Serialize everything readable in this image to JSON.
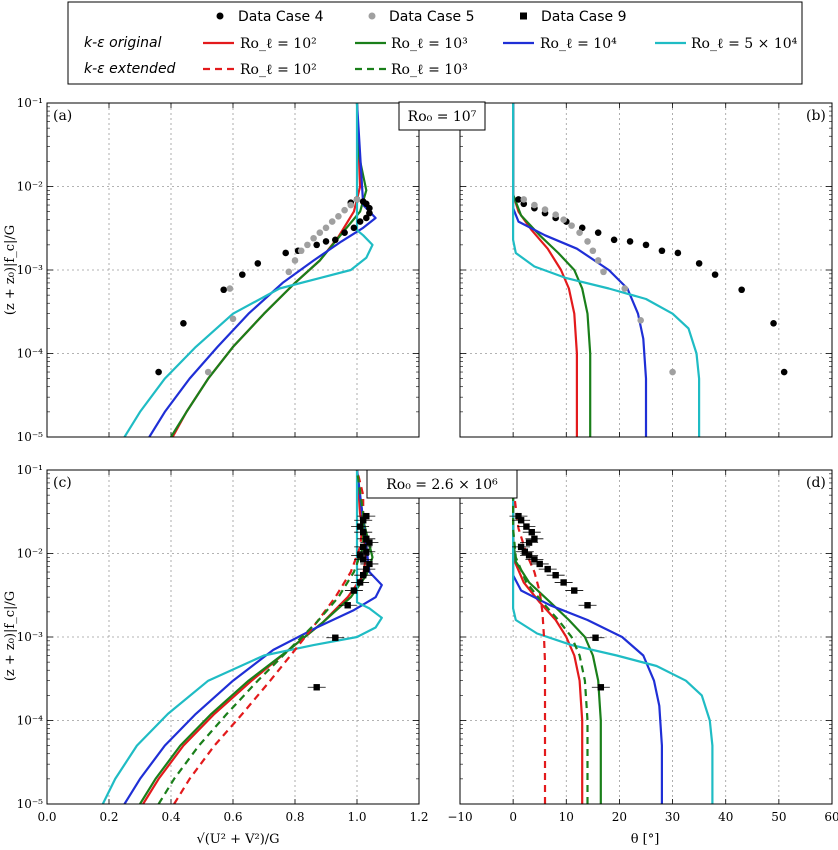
{
  "legend": {
    "row_labels": [
      "k-ε original",
      "k-ε extended"
    ],
    "data_entries": [
      {
        "label": "Data Case 4",
        "marker": "circle",
        "color": "#000000"
      },
      {
        "label": "Data Case 5",
        "marker": "circle",
        "color": "#a0a0a0"
      },
      {
        "label": "Data Case 9",
        "marker": "square",
        "color": "#000000"
      }
    ],
    "model_entries": [
      {
        "label": "Ro_ℓ = 10²",
        "color": "#e31a1c",
        "dash": "solid"
      },
      {
        "label": "Ro_ℓ = 10³",
        "color": "#1a7f1a",
        "dash": "solid"
      },
      {
        "label": "Ro_ℓ = 10⁴",
        "color": "#1f2fd6",
        "dash": "solid"
      },
      {
        "label": "Ro_ℓ = 5 × 10⁴",
        "color": "#1fbcc4",
        "dash": "solid"
      },
      {
        "label": "Ro_ℓ = 10²",
        "color": "#e31a1c",
        "dash": "dashed"
      },
      {
        "label": "Ro_ℓ = 10³",
        "color": "#1a7f1a",
        "dash": "dashed"
      }
    ]
  },
  "ro_labels": {
    "top": "Ro₀ = 10⁷",
    "bottom": "Ro₀ = 2.6 × 10⁶"
  },
  "axes": {
    "xlabel_left": "√(U² + V²)/G",
    "xlabel_right": "θ [°]",
    "ylabel": "(z + z₀)|f_c|/G",
    "left_xticks": [
      "0.0",
      "0.2",
      "0.4",
      "0.6",
      "0.8",
      "1.0",
      "1.2"
    ],
    "right_xticks": [
      "−10",
      "0",
      "10",
      "20",
      "30",
      "40",
      "50",
      "60"
    ],
    "yticks": [
      "10⁻⁵",
      "10⁻⁴",
      "10⁻³",
      "10⁻²",
      "10⁻¹"
    ]
  },
  "chart_data": [
    {
      "panel": "(a)",
      "type": "line",
      "xlim": [
        0,
        1.2
      ],
      "ylim": [
        1e-05,
        0.1
      ],
      "yscale": "log",
      "grid": true,
      "series": [
        {
          "name": "Ro_ℓ = 10² original",
          "color": "#e31a1c",
          "dash": "solid",
          "x": [
            0.405,
            0.45,
            0.52,
            0.6,
            0.7,
            0.8,
            0.88,
            0.94,
            0.99,
            1.01,
            1.005,
            1.0
          ],
          "y": [
            1e-05,
            2e-05,
            5e-05,
            0.00012,
            0.0003,
            0.0007,
            0.0013,
            0.0025,
            0.005,
            0.01,
            0.03,
            0.1
          ]
        },
        {
          "name": "Ro_ℓ = 10³ original",
          "color": "#1a7f1a",
          "dash": "solid",
          "x": [
            0.4,
            0.45,
            0.52,
            0.6,
            0.7,
            0.8,
            0.88,
            0.95,
            1.01,
            1.03,
            1.005,
            1.0
          ],
          "y": [
            1e-05,
            2e-05,
            5e-05,
            0.00012,
            0.0003,
            0.0007,
            0.0013,
            0.0027,
            0.005,
            0.009,
            0.025,
            0.1
          ]
        },
        {
          "name": "Ro_ℓ = 10⁴ original",
          "color": "#1f2fd6",
          "dash": "solid",
          "x": [
            0.33,
            0.38,
            0.46,
            0.55,
            0.65,
            0.76,
            0.86,
            0.95,
            1.02,
            1.06,
            1.02,
            1.0
          ],
          "y": [
            1e-05,
            2e-05,
            5e-05,
            0.00012,
            0.0003,
            0.0007,
            0.0013,
            0.0022,
            0.0032,
            0.0042,
            0.006,
            0.1
          ]
        },
        {
          "name": "Ro_ℓ = 5 × 10⁴ original",
          "color": "#1fbcc4",
          "dash": "solid",
          "x": [
            0.25,
            0.3,
            0.38,
            0.48,
            0.6,
            0.75,
            0.88,
            0.98,
            1.03,
            1.05,
            1.02,
            1.0,
            1.0
          ],
          "y": [
            1e-05,
            2e-05,
            5e-05,
            0.00012,
            0.0003,
            0.0006,
            0.0008,
            0.001,
            0.0014,
            0.002,
            0.0026,
            0.003,
            0.1
          ]
        }
      ],
      "scatter": [
        {
          "name": "Data Case 4",
          "marker": "circle",
          "color": "#000000",
          "x": [
            0.36,
            0.44,
            0.57,
            0.63,
            0.68,
            0.77,
            0.81,
            0.87,
            0.9,
            0.93,
            0.96,
            0.99,
            1.01,
            1.03,
            1.04,
            1.04,
            1.03,
            1.02,
            1.0,
            0.98
          ],
          "y": [
            6e-05,
            0.00023,
            0.00058,
            0.00088,
            0.0012,
            0.0016,
            0.0017,
            0.002,
            0.0022,
            0.0023,
            0.0028,
            0.0032,
            0.0038,
            0.0042,
            0.0048,
            0.0055,
            0.0062,
            0.0066,
            0.007,
            0.0064
          ]
        },
        {
          "name": "Data Case 5",
          "marker": "circle",
          "color": "#a0a0a0",
          "x": [
            0.52,
            0.6,
            0.59,
            0.78,
            0.8,
            0.82,
            0.84,
            0.86,
            0.88,
            0.9,
            0.92,
            0.94,
            0.96,
            0.98,
            1.0
          ],
          "y": [
            6e-05,
            0.00026,
            0.0006,
            0.00095,
            0.0013,
            0.0017,
            0.002,
            0.0024,
            0.0028,
            0.0032,
            0.0038,
            0.0044,
            0.0052,
            0.006,
            0.007
          ]
        }
      ]
    },
    {
      "panel": "(b)",
      "type": "line",
      "xlim": [
        -10,
        60
      ],
      "ylim": [
        1e-05,
        0.1
      ],
      "yscale": "log",
      "grid": true,
      "series": [
        {
          "name": "Ro_ℓ = 10² original",
          "color": "#e31a1c",
          "dash": "solid",
          "x": [
            12,
            12,
            11.5,
            10.5,
            9,
            6.5,
            3.5,
            1,
            0,
            0
          ],
          "y": [
            1e-05,
            0.0001,
            0.0003,
            0.0006,
            0.001,
            0.0018,
            0.003,
            0.005,
            0.008,
            0.1
          ]
        },
        {
          "name": "Ro_ℓ = 10³ original",
          "color": "#1a7f1a",
          "dash": "solid",
          "x": [
            14.5,
            14.5,
            14,
            13,
            11.5,
            8.5,
            5,
            1.5,
            0,
            0
          ],
          "y": [
            1e-05,
            0.0001,
            0.0003,
            0.0006,
            0.001,
            0.0016,
            0.0026,
            0.0045,
            0.008,
            0.1
          ]
        },
        {
          "name": "Ro_ℓ = 10⁴ original",
          "color": "#1f2fd6",
          "dash": "solid",
          "x": [
            25,
            25,
            24.5,
            23.5,
            21.5,
            18,
            12,
            6,
            1,
            0,
            0
          ],
          "y": [
            1e-05,
            5e-05,
            0.00015,
            0.0003,
            0.0006,
            0.001,
            0.0018,
            0.0026,
            0.0038,
            0.0055,
            0.1
          ]
        },
        {
          "name": "Ro_ℓ = 5 × 10⁴ original",
          "color": "#1fbcc4",
          "dash": "solid",
          "x": [
            35,
            35,
            34.5,
            33,
            30,
            25,
            18,
            10,
            4,
            0.5,
            0,
            0
          ],
          "y": [
            1e-05,
            5e-05,
            0.0001,
            0.0002,
            0.0003,
            0.00045,
            0.0006,
            0.0008,
            0.0011,
            0.0016,
            0.0023,
            0.1
          ]
        }
      ],
      "scatter": [
        {
          "name": "Data Case 4",
          "marker": "circle",
          "color": "#000000",
          "x": [
            51,
            49,
            43,
            38,
            35,
            31,
            28,
            25,
            22,
            19,
            16,
            13,
            10,
            8,
            6,
            4,
            2,
            1
          ],
          "y": [
            6e-05,
            0.00023,
            0.00058,
            0.00088,
            0.0012,
            0.0016,
            0.0017,
            0.002,
            0.0022,
            0.0023,
            0.0028,
            0.0032,
            0.0038,
            0.0042,
            0.0048,
            0.0055,
            0.0062,
            0.007
          ]
        },
        {
          "name": "Data Case 5",
          "marker": "circle",
          "color": "#a0a0a0",
          "x": [
            30,
            24,
            21,
            17,
            16,
            15,
            14,
            12.5,
            11,
            9.5,
            8,
            6,
            4,
            2
          ],
          "y": [
            6e-05,
            0.00025,
            0.0006,
            0.00095,
            0.0013,
            0.0017,
            0.0022,
            0.0028,
            0.0034,
            0.004,
            0.0046,
            0.0053,
            0.006,
            0.007
          ]
        }
      ]
    },
    {
      "panel": "(c)",
      "type": "line",
      "xlim": [
        0,
        1.2
      ],
      "ylim": [
        1e-05,
        0.1
      ],
      "yscale": "log",
      "grid": true,
      "series": [
        {
          "name": "Ro_ℓ = 10² original",
          "color": "#e31a1c",
          "dash": "solid",
          "x": [
            0.31,
            0.36,
            0.44,
            0.54,
            0.66,
            0.78,
            0.89,
            0.97,
            1.02,
            1.03,
            1.01,
            1.0
          ],
          "y": [
            1e-05,
            2e-05,
            5e-05,
            0.00012,
            0.0003,
            0.0007,
            0.0015,
            0.003,
            0.0055,
            0.01,
            0.03,
            0.1
          ]
        },
        {
          "name": "Ro_ℓ = 10³ original",
          "color": "#1a7f1a",
          "dash": "solid",
          "x": [
            0.3,
            0.35,
            0.43,
            0.53,
            0.65,
            0.78,
            0.89,
            0.98,
            1.03,
            1.05,
            1.02,
            1.0
          ],
          "y": [
            1e-05,
            2e-05,
            5e-05,
            0.00012,
            0.0003,
            0.0007,
            0.0015,
            0.003,
            0.0055,
            0.009,
            0.025,
            0.1
          ]
        },
        {
          "name": "Ro_ℓ = 10⁴ original",
          "color": "#1f2fd6",
          "dash": "solid",
          "x": [
            0.25,
            0.3,
            0.38,
            0.48,
            0.6,
            0.73,
            0.87,
            0.99,
            1.06,
            1.08,
            1.04,
            1.0
          ],
          "y": [
            1e-05,
            2e-05,
            5e-05,
            0.00012,
            0.0003,
            0.0007,
            0.0013,
            0.0021,
            0.003,
            0.0042,
            0.006,
            0.1
          ]
        },
        {
          "name": "Ro_ℓ = 5 × 10⁴ original",
          "color": "#1fbcc4",
          "dash": "solid",
          "x": [
            0.18,
            0.22,
            0.29,
            0.39,
            0.52,
            0.7,
            0.86,
            1.0,
            1.06,
            1.08,
            1.04,
            1.0,
            1.0
          ],
          "y": [
            1e-05,
            2e-05,
            5e-05,
            0.00012,
            0.0003,
            0.0006,
            0.0008,
            0.001,
            0.0013,
            0.0017,
            0.0022,
            0.0026,
            0.1
          ]
        },
        {
          "name": "Ro_ℓ = 10² extended",
          "color": "#e31a1c",
          "dash": "dashed",
          "x": [
            0.41,
            0.46,
            0.54,
            0.63,
            0.72,
            0.8,
            0.87,
            0.93,
            0.98,
            1.01,
            1.02,
            1.02,
            1.0
          ],
          "y": [
            1e-05,
            2e-05,
            5e-05,
            0.00012,
            0.0003,
            0.0007,
            0.0015,
            0.003,
            0.006,
            0.012,
            0.025,
            0.05,
            0.1
          ]
        },
        {
          "name": "Ro_ℓ = 10³ extended",
          "color": "#1a7f1a",
          "dash": "dashed",
          "x": [
            0.36,
            0.41,
            0.49,
            0.58,
            0.68,
            0.78,
            0.87,
            0.94,
            0.99,
            1.02,
            1.02,
            1.0
          ],
          "y": [
            1e-05,
            2e-05,
            5e-05,
            0.00012,
            0.0003,
            0.0007,
            0.0015,
            0.003,
            0.006,
            0.012,
            0.03,
            0.1
          ]
        }
      ],
      "scatter": [
        {
          "name": "Data Case 9",
          "marker": "square",
          "color": "#000000",
          "x": [
            0.87,
            0.93,
            0.97,
            0.99,
            1.01,
            1.02,
            1.03,
            1.04,
            1.02,
            1.01,
            1.03,
            1.02,
            1.04,
            1.03,
            1.02,
            1.01,
            1.02,
            1.03
          ],
          "y": [
            0.00025,
            0.00098,
            0.0024,
            0.0036,
            0.0045,
            0.0055,
            0.0065,
            0.0075,
            0.0085,
            0.0095,
            0.0105,
            0.012,
            0.0135,
            0.015,
            0.018,
            0.021,
            0.025,
            0.028
          ]
        }
      ]
    },
    {
      "panel": "(d)",
      "type": "line",
      "xlim": [
        -10,
        60
      ],
      "ylim": [
        1e-05,
        0.1
      ],
      "yscale": "log",
      "grid": true,
      "series": [
        {
          "name": "Ro_ℓ = 10² original",
          "color": "#e31a1c",
          "dash": "solid",
          "x": [
            13,
            13,
            12.5,
            11.5,
            10,
            8,
            5,
            2,
            0.3,
            0,
            0
          ],
          "y": [
            1e-05,
            0.0001,
            0.0003,
            0.0006,
            0.001,
            0.0016,
            0.0026,
            0.0045,
            0.008,
            0.015,
            0.1
          ]
        },
        {
          "name": "Ro_ℓ = 10³ original",
          "color": "#1a7f1a",
          "dash": "solid",
          "x": [
            16.5,
            16.5,
            16,
            15,
            13.5,
            10.5,
            7,
            3,
            0.5,
            0,
            0
          ],
          "y": [
            1e-05,
            0.0001,
            0.0003,
            0.0006,
            0.001,
            0.0016,
            0.0026,
            0.0045,
            0.008,
            0.015,
            0.1
          ]
        },
        {
          "name": "Ro_ℓ = 10⁴ original",
          "color": "#1f2fd6",
          "dash": "solid",
          "x": [
            28,
            28,
            27.5,
            26.5,
            24.5,
            20.5,
            14,
            7,
            1.5,
            0,
            0
          ],
          "y": [
            1e-05,
            5e-05,
            0.00015,
            0.0003,
            0.0006,
            0.001,
            0.0016,
            0.0024,
            0.0036,
            0.0055,
            0.1
          ]
        },
        {
          "name": "Ro_ℓ = 5 × 10⁴ original",
          "color": "#1fbcc4",
          "dash": "solid",
          "x": [
            37.5,
            37.5,
            37,
            35.5,
            32.5,
            27,
            19.5,
            11,
            4.5,
            0.5,
            0,
            0
          ],
          "y": [
            1e-05,
            5e-05,
            0.0001,
            0.0002,
            0.0003,
            0.00045,
            0.0006,
            0.0008,
            0.0011,
            0.0016,
            0.0022,
            0.1
          ]
        },
        {
          "name": "Ro_ℓ = 10² extended",
          "color": "#e31a1c",
          "dash": "dashed",
          "x": [
            6,
            6,
            6,
            5.8,
            5.5,
            5,
            4,
            2.5,
            1,
            0.2,
            0
          ],
          "y": [
            1e-05,
            0.0001,
            0.0005,
            0.001,
            0.002,
            0.0035,
            0.006,
            0.01,
            0.02,
            0.05,
            0.1
          ]
        },
        {
          "name": "Ro_ℓ = 10³ extended",
          "color": "#1a7f1a",
          "dash": "dashed",
          "x": [
            14,
            14,
            13.5,
            12.5,
            11,
            8.5,
            5.5,
            2.5,
            0.5,
            0,
            0
          ],
          "y": [
            1e-05,
            0.0001,
            0.0003,
            0.0006,
            0.001,
            0.0016,
            0.0026,
            0.0045,
            0.009,
            0.02,
            0.1
          ]
        }
      ],
      "scatter": [
        {
          "name": "Data Case 9",
          "marker": "square",
          "color": "#000000",
          "x": [
            16.5,
            15.5,
            14,
            11.5,
            9.5,
            8,
            6.5,
            5,
            4,
            3,
            2.2,
            1.5,
            3,
            4,
            3.5,
            2.5,
            1.5,
            1
          ],
          "y": [
            0.00025,
            0.00098,
            0.0024,
            0.0036,
            0.0045,
            0.0055,
            0.0065,
            0.0075,
            0.0085,
            0.0095,
            0.0105,
            0.012,
            0.0135,
            0.015,
            0.018,
            0.021,
            0.025,
            0.028
          ]
        }
      ]
    }
  ]
}
